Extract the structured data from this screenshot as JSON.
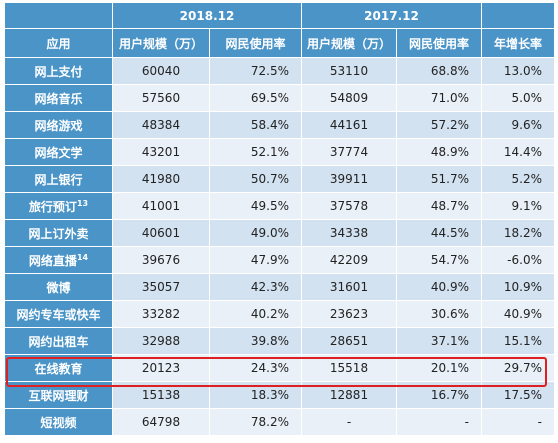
{
  "header": {
    "period_2018": "2018.12",
    "period_2017": "2017.12",
    "col_app": "应用",
    "col_users_2018": "用户规模（万）",
    "col_rate_2018": "网民使用率",
    "col_users_2017": "用户规模（万）",
    "col_rate_2017": "网民使用率",
    "col_growth": "年增长率"
  },
  "rows": [
    {
      "app": "网上支付",
      "u18": "60040",
      "r18": "72.5%",
      "u17": "53110",
      "r17": "68.8%",
      "g": "13.0%"
    },
    {
      "app": "网络音乐",
      "u18": "57560",
      "r18": "69.5%",
      "u17": "54809",
      "r17": "71.0%",
      "g": "5.0%"
    },
    {
      "app": "网络游戏",
      "u18": "48384",
      "r18": "58.4%",
      "u17": "44161",
      "r17": "57.2%",
      "g": "9.6%"
    },
    {
      "app": "网络文学",
      "u18": "43201",
      "r18": "52.1%",
      "u17": "37774",
      "r17": "48.9%",
      "g": "14.4%"
    },
    {
      "app": "网上银行",
      "u18": "41980",
      "r18": "50.7%",
      "u17": "39911",
      "r17": "51.7%",
      "g": "5.2%"
    },
    {
      "app": "旅行预订",
      "sup": "13",
      "u18": "41001",
      "r18": "49.5%",
      "u17": "37578",
      "r17": "48.7%",
      "g": "9.1%"
    },
    {
      "app": "网上订外卖",
      "u18": "40601",
      "r18": "49.0%",
      "u17": "34338",
      "r17": "44.5%",
      "g": "18.2%"
    },
    {
      "app": "网络直播",
      "sup": "14",
      "u18": "39676",
      "r18": "47.9%",
      "u17": "42209",
      "r17": "54.7%",
      "g": "-6.0%"
    },
    {
      "app": "微博",
      "u18": "35057",
      "r18": "42.3%",
      "u17": "31601",
      "r17": "40.9%",
      "g": "10.9%"
    },
    {
      "app": "网约专车或快车",
      "u18": "33282",
      "r18": "40.2%",
      "u17": "23623",
      "r17": "30.6%",
      "g": "40.9%"
    },
    {
      "app": "网约出租车",
      "u18": "32988",
      "r18": "39.8%",
      "u17": "28651",
      "r17": "37.1%",
      "g": "15.1%"
    },
    {
      "app": "在线教育",
      "u18": "20123",
      "r18": "24.3%",
      "u17": "15518",
      "r17": "20.1%",
      "g": "29.7%"
    },
    {
      "app": "互联网理财",
      "u18": "15138",
      "r18": "18.3%",
      "u17": "12881",
      "r17": "16.7%",
      "g": "17.5%"
    },
    {
      "app": "短视频",
      "u18": "64798",
      "r18": "78.2%",
      "u17": "-",
      "r17": "-",
      "g": "-"
    }
  ],
  "highlight_row": "在线教育",
  "highlight_color": "#e02020",
  "header_color": "#4a94c8"
}
